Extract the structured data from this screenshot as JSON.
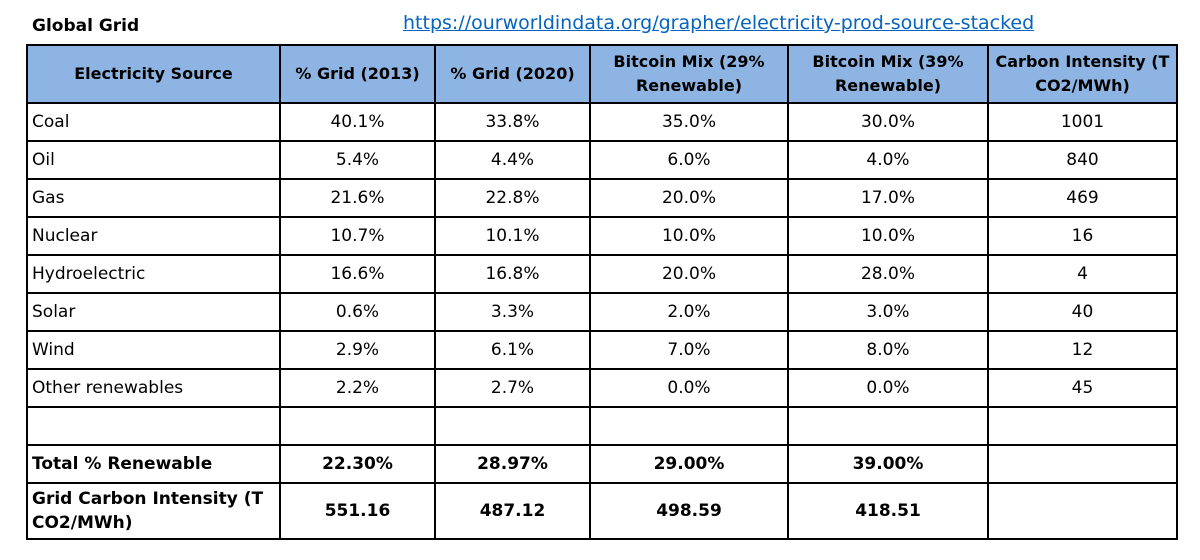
{
  "sheet": {
    "title": "Global Grid",
    "source_url": "https://ourworldindata.org/grapher/electricity-prod-source-stacked"
  },
  "table": {
    "headers": [
      "Electricity Source",
      "% Grid (2013)",
      "% Grid (2020)",
      "Bitcoin Mix (29% Renewable)",
      "Bitcoin Mix (39% Renewable)",
      "Carbon Intensity (T CO2/MWh)"
    ],
    "rows": [
      [
        "Coal",
        "40.1%",
        "33.8%",
        "35.0%",
        "30.0%",
        "1001"
      ],
      [
        "Oil",
        "5.4%",
        "4.4%",
        "6.0%",
        "4.0%",
        "840"
      ],
      [
        "Gas",
        "21.6%",
        "22.8%",
        "20.0%",
        "17.0%",
        "469"
      ],
      [
        "Nuclear",
        "10.7%",
        "10.1%",
        "10.0%",
        "10.0%",
        "16"
      ],
      [
        "Hydroelectric",
        "16.6%",
        "16.8%",
        "20.0%",
        "28.0%",
        "4"
      ],
      [
        "Solar",
        "0.6%",
        "3.3%",
        "2.0%",
        "3.0%",
        "40"
      ],
      [
        "Wind",
        "2.9%",
        "6.1%",
        "7.0%",
        "8.0%",
        "12"
      ],
      [
        "Other renewables",
        "2.2%",
        "2.7%",
        "0.0%",
        "0.0%",
        "45"
      ]
    ],
    "total_renewable": [
      "Total % Renewable",
      "22.30%",
      "28.97%",
      "29.00%",
      "39.00%",
      ""
    ],
    "grid_carbon": [
      "Grid Carbon Intensity (T CO2/MWh)",
      "551.16",
      "487.12",
      "498.59",
      "418.51",
      ""
    ]
  }
}
